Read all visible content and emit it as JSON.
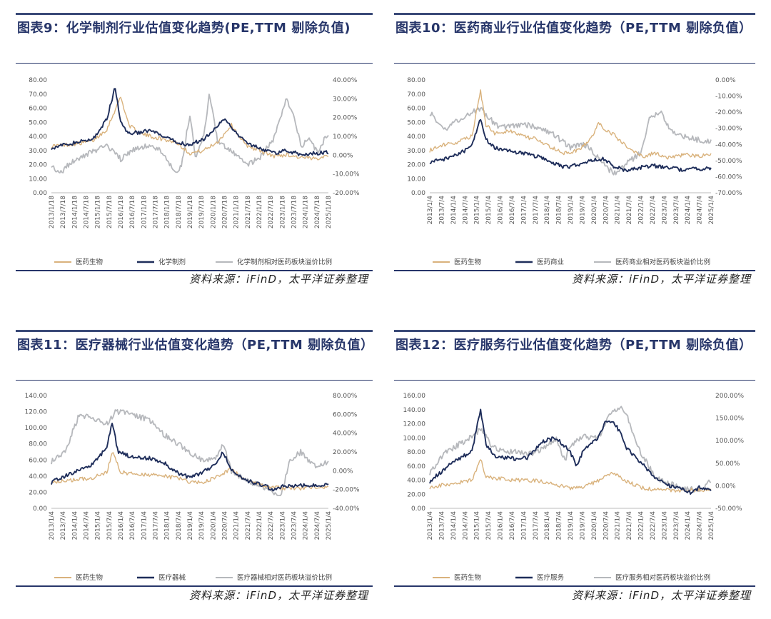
{
  "source_text": "资料来源：iFinD，太平洋证券整理",
  "colors": {
    "bio": "#d9b27c",
    "main": "#1e2d5a",
    "ratio": "#b6b8bc"
  },
  "chart_data": [
    {
      "type": "line",
      "title": "图表9：化学制剂行业估值变化趋势(PE,TTM 剔除负值)",
      "left_ticks": [
        "0.00",
        "10.00",
        "20.00",
        "30.00",
        "40.00",
        "50.00",
        "60.00",
        "70.00",
        "80.00"
      ],
      "left_ylim": [
        0,
        80
      ],
      "right_ticks": [
        "-20.00%",
        "-10.00%",
        "0.00%",
        "10.00%",
        "20.00%",
        "30.00%",
        "40.00%"
      ],
      "right_ylim": [
        -20,
        40
      ],
      "x_ticks": [
        "2013/1/18",
        "2013/7/18",
        "2014/1/18",
        "2014/7/18",
        "2015/1/18",
        "2015/7/18",
        "2016/1/18",
        "2016/7/18",
        "2017/1/18",
        "2017/7/18",
        "2018/1/18",
        "2018/7/18",
        "2019/1/18",
        "2019/7/18",
        "2020/1/18",
        "2020/7/18",
        "2021/1/18",
        "2021/7/18",
        "2022/1/18",
        "2022/7/18",
        "2023/1/18",
        "2023/7/18",
        "2024/1/18",
        "2024/7/18",
        "2025/1/18"
      ],
      "series": [
        {
          "name": "医药生物",
          "axis": "left",
          "x": [
            0,
            0.05,
            0.1,
            0.15,
            0.2,
            0.25,
            0.28,
            0.32,
            0.36,
            0.4,
            0.45,
            0.5,
            0.55,
            0.6,
            0.65,
            0.7,
            0.75,
            0.8,
            0.85,
            0.9,
            0.95,
            1
          ],
          "y": [
            33,
            34,
            35,
            37,
            45,
            68,
            48,
            42,
            40,
            38,
            36,
            28,
            30,
            36,
            48,
            34,
            30,
            26,
            27,
            25,
            24,
            27
          ]
        },
        {
          "name": "化学制剂",
          "axis": "left",
          "x": [
            0,
            0.05,
            0.1,
            0.15,
            0.2,
            0.23,
            0.25,
            0.28,
            0.32,
            0.36,
            0.4,
            0.45,
            0.5,
            0.55,
            0.6,
            0.63,
            0.65,
            0.7,
            0.75,
            0.8,
            0.85,
            0.9,
            0.95,
            1
          ],
          "y": [
            32,
            34,
            36,
            38,
            52,
            75,
            50,
            42,
            43,
            44,
            40,
            36,
            34,
            38,
            48,
            52,
            46,
            36,
            32,
            28,
            30,
            27,
            28,
            29
          ]
        },
        {
          "name": "化学制剂相对医药板块溢价比例",
          "axis": "right",
          "x": [
            0,
            0.03,
            0.06,
            0.1,
            0.15,
            0.2,
            0.25,
            0.3,
            0.35,
            0.4,
            0.45,
            0.47,
            0.5,
            0.52,
            0.55,
            0.57,
            0.6,
            0.65,
            0.7,
            0.75,
            0.8,
            0.85,
            0.88,
            0.9,
            0.93,
            0.96,
            1
          ],
          "y": [
            -5,
            -10,
            -5,
            -2,
            2,
            5,
            -2,
            3,
            5,
            2,
            -10,
            -5,
            22,
            -2,
            10,
            32,
            8,
            2,
            -5,
            -2,
            8,
            30,
            18,
            5,
            8,
            2,
            12
          ]
        }
      ]
    },
    {
      "type": "line",
      "title": "图表10：医药商业行业估值变化趋势（PE,TTM 剔除负值）",
      "left_ticks": [
        "0.00",
        "10.00",
        "20.00",
        "30.00",
        "40.00",
        "50.00",
        "60.00",
        "70.00",
        "80.00"
      ],
      "left_ylim": [
        0,
        80
      ],
      "right_ticks": [
        "-70.00%",
        "-60.00%",
        "-50.00%",
        "-40.00%",
        "-30.00%",
        "-20.00%",
        "-10.00%",
        "0.00%"
      ],
      "right_ylim": [
        -70,
        0
      ],
      "x_ticks": [
        "2013/1/4",
        "2013/7/4",
        "2014/1/4",
        "2014/7/4",
        "2015/1/4",
        "2015/7/4",
        "2016/1/4",
        "2016/7/4",
        "2017/1/4",
        "2017/7/4",
        "2018/1/4",
        "2018/7/4",
        "2019/1/4",
        "2019/7/4",
        "2020/1/4",
        "2020/7/4",
        "2021/1/4",
        "2021/7/4",
        "2022/1/4",
        "2022/7/4",
        "2023/1/4",
        "2023/7/4",
        "2024/1/4",
        "2024/7/4",
        "2025/1/4"
      ],
      "series": [
        {
          "name": "医药生物",
          "axis": "left",
          "x": [
            0,
            0.05,
            0.1,
            0.15,
            0.18,
            0.2,
            0.23,
            0.28,
            0.33,
            0.38,
            0.43,
            0.48,
            0.53,
            0.58,
            0.6,
            0.62,
            0.65,
            0.68,
            0.72,
            0.76,
            0.8,
            0.85,
            0.9,
            0.95,
            1
          ],
          "y": [
            30,
            34,
            36,
            40,
            73,
            48,
            42,
            44,
            40,
            38,
            32,
            28,
            30,
            40,
            50,
            45,
            42,
            36,
            30,
            26,
            28,
            25,
            27,
            26,
            27
          ]
        },
        {
          "name": "医药商业",
          "axis": "left",
          "x": [
            0,
            0.05,
            0.1,
            0.15,
            0.18,
            0.2,
            0.23,
            0.28,
            0.33,
            0.38,
            0.43,
            0.48,
            0.53,
            0.58,
            0.62,
            0.66,
            0.7,
            0.75,
            0.8,
            0.85,
            0.9,
            0.95,
            1
          ],
          "y": [
            22,
            24,
            27,
            33,
            53,
            38,
            32,
            30,
            28,
            26,
            22,
            18,
            20,
            23,
            24,
            18,
            16,
            18,
            19,
            18,
            16,
            17,
            17
          ]
        },
        {
          "name": "医药商业相对医药板块溢价比例",
          "axis": "right",
          "x": [
            0,
            0.03,
            0.06,
            0.1,
            0.15,
            0.18,
            0.2,
            0.25,
            0.3,
            0.35,
            0.4,
            0.45,
            0.5,
            0.55,
            0.6,
            0.63,
            0.66,
            0.7,
            0.75,
            0.78,
            0.8,
            0.82,
            0.85,
            0.9,
            0.95,
            1
          ],
          "y": [
            -20,
            -27,
            -30,
            -25,
            -20,
            -18,
            -22,
            -30,
            -28,
            -28,
            -30,
            -35,
            -42,
            -40,
            -48,
            -55,
            -58,
            -52,
            -45,
            -25,
            -22,
            -20,
            -30,
            -35,
            -37,
            -38
          ]
        }
      ]
    },
    {
      "type": "line",
      "title": "图表11：医疗器械行业估值变化趋势（PE,TTM 剔除负值）",
      "left_ticks": [
        "0.00",
        "20.00",
        "40.00",
        "60.00",
        "80.00",
        "100.00",
        "120.00",
        "140.00"
      ],
      "left_ylim": [
        0,
        140
      ],
      "right_ticks": [
        "-40.00%",
        "-20.00%",
        "0.00%",
        "20.00%",
        "40.00%",
        "60.00%",
        "80.00%"
      ],
      "right_ylim": [
        -40,
        80
      ],
      "x_ticks": [
        "2013/1/4",
        "2013/7/4",
        "2014/1/4",
        "2014/7/4",
        "2015/1/4",
        "2015/7/4",
        "2016/1/4",
        "2016/7/4",
        "2017/1/4",
        "2017/7/4",
        "2018/1/4",
        "2018/7/4",
        "2019/1/4",
        "2019/7/4",
        "2020/1/4",
        "2020/7/4",
        "2021/1/4",
        "2021/7/4",
        "2022/1/4",
        "2022/7/4",
        "2023/1/4",
        "2023/7/4",
        "2024/1/4",
        "2024/7/4",
        "2025/1/4"
      ],
      "series": [
        {
          "name": "医药生物",
          "axis": "left",
          "x": [
            0,
            0.05,
            0.1,
            0.15,
            0.2,
            0.22,
            0.25,
            0.3,
            0.35,
            0.4,
            0.45,
            0.5,
            0.55,
            0.6,
            0.65,
            0.7,
            0.75,
            0.8,
            0.85,
            0.9,
            0.95,
            1
          ],
          "y": [
            32,
            34,
            36,
            38,
            45,
            70,
            45,
            42,
            42,
            40,
            38,
            33,
            32,
            40,
            48,
            35,
            30,
            26,
            25,
            25,
            27,
            27
          ]
        },
        {
          "name": "医疗器械",
          "axis": "left",
          "x": [
            0,
            0.05,
            0.1,
            0.15,
            0.2,
            0.22,
            0.24,
            0.28,
            0.32,
            0.36,
            0.4,
            0.45,
            0.5,
            0.55,
            0.6,
            0.62,
            0.65,
            0.7,
            0.75,
            0.8,
            0.85,
            0.9,
            0.95,
            1
          ],
          "y": [
            32,
            40,
            48,
            55,
            75,
            108,
            70,
            65,
            63,
            62,
            58,
            45,
            38,
            45,
            58,
            70,
            48,
            35,
            30,
            24,
            28,
            28,
            29,
            30
          ]
        },
        {
          "name": "医疗器械相对医药板块溢价比例",
          "axis": "right",
          "x": [
            0,
            0.05,
            0.1,
            0.15,
            0.2,
            0.23,
            0.26,
            0.3,
            0.35,
            0.4,
            0.45,
            0.5,
            0.55,
            0.6,
            0.62,
            0.65,
            0.7,
            0.75,
            0.8,
            0.83,
            0.86,
            0.9,
            0.95,
            1
          ],
          "y": [
            10,
            20,
            60,
            55,
            50,
            62,
            63,
            58,
            55,
            40,
            30,
            20,
            10,
            15,
            30,
            0,
            -10,
            -15,
            -22,
            -26,
            10,
            20,
            5,
            10
          ]
        }
      ]
    },
    {
      "type": "line",
      "title": "图表12：医疗服务行业估值变化趋势（PE,TTM 剔除负值）",
      "left_ticks": [
        "0.00",
        "20.00",
        "40.00",
        "60.00",
        "80.00",
        "100.00",
        "120.00",
        "140.00",
        "160.00"
      ],
      "left_ylim": [
        0,
        160
      ],
      "right_ticks": [
        "-50.00%",
        "0.00%",
        "50.00%",
        "100.00%",
        "150.00%",
        "200.00%"
      ],
      "right_ylim": [
        -50,
        200
      ],
      "x_ticks": [
        "2013/1/4",
        "2013/7/4",
        "2014/1/4",
        "2014/7/4",
        "2015/1/4",
        "2015/7/4",
        "2016/1/4",
        "2016/7/4",
        "2017/1/4",
        "2017/7/4",
        "2018/1/4",
        "2018/7/4",
        "2019/1/4",
        "2019/7/4",
        "2020/1/4",
        "2020/7/4",
        "2021/1/4",
        "2021/7/4",
        "2022/1/4",
        "2022/7/4",
        "2023/1/4",
        "2023/7/4",
        "2024/1/4",
        "2024/7/4",
        "2025/1/4"
      ],
      "series": [
        {
          "name": "医药生物",
          "axis": "left",
          "x": [
            0,
            0.05,
            0.1,
            0.15,
            0.18,
            0.2,
            0.25,
            0.3,
            0.35,
            0.4,
            0.45,
            0.5,
            0.55,
            0.6,
            0.65,
            0.7,
            0.75,
            0.8,
            0.85,
            0.9,
            0.95,
            1
          ],
          "y": [
            30,
            33,
            36,
            40,
            70,
            45,
            42,
            40,
            40,
            38,
            34,
            28,
            30,
            40,
            50,
            38,
            30,
            26,
            26,
            25,
            26,
            27
          ]
        },
        {
          "name": "医疗服务",
          "axis": "left",
          "x": [
            0,
            0.05,
            0.1,
            0.15,
            0.18,
            0.2,
            0.23,
            0.27,
            0.3,
            0.35,
            0.4,
            0.45,
            0.5,
            0.52,
            0.55,
            0.6,
            0.62,
            0.65,
            0.68,
            0.7,
            0.75,
            0.8,
            0.85,
            0.9,
            0.93,
            0.96,
            1
          ],
          "y": [
            38,
            55,
            70,
            80,
            140,
            90,
            75,
            72,
            70,
            72,
            95,
            100,
            80,
            60,
            85,
            100,
            120,
            125,
            105,
            85,
            65,
            45,
            32,
            28,
            22,
            30,
            26
          ]
        },
        {
          "name": "医疗服务相对医药板块溢价比例",
          "axis": "right",
          "x": [
            0,
            0.05,
            0.1,
            0.15,
            0.18,
            0.22,
            0.25,
            0.3,
            0.35,
            0.4,
            0.45,
            0.48,
            0.5,
            0.55,
            0.6,
            0.63,
            0.67,
            0.7,
            0.72,
            0.75,
            0.8,
            0.85,
            0.9,
            0.95,
            1
          ],
          "y": [
            30,
            70,
            90,
            110,
            125,
            90,
            80,
            75,
            70,
            80,
            105,
            55,
            90,
            110,
            105,
            150,
            175,
            160,
            120,
            75,
            20,
            5,
            -5,
            -10,
            10
          ]
        }
      ]
    }
  ]
}
